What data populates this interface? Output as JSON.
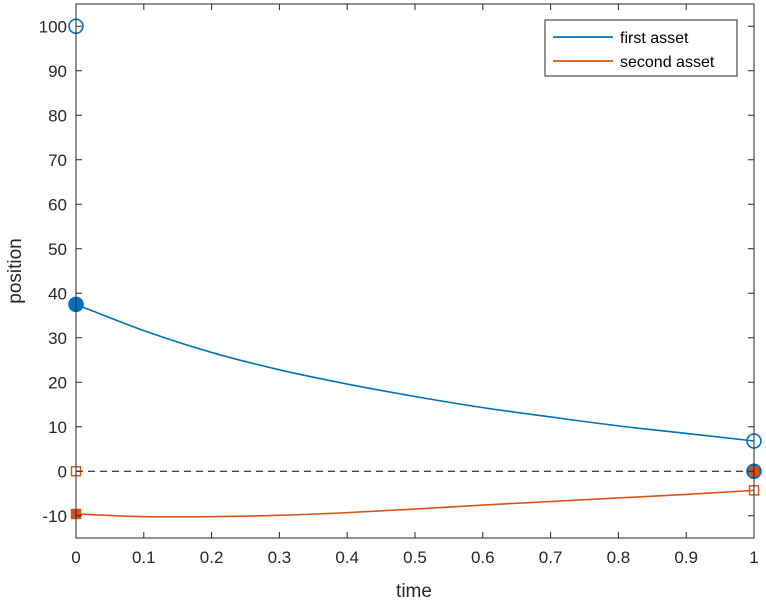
{
  "chart_data": {
    "type": "line",
    "xlabel": "time",
    "ylabel": "position",
    "xlim": [
      0,
      1
    ],
    "ylim": [
      -15,
      105
    ],
    "xticks": [
      "0",
      "0.1",
      "0.2",
      "0.3",
      "0.4",
      "0.5",
      "0.6",
      "0.7",
      "0.8",
      "0.9",
      "1"
    ],
    "yticks": [
      "-10",
      "0",
      "10",
      "20",
      "30",
      "40",
      "50",
      "60",
      "70",
      "80",
      "90",
      "100"
    ],
    "grid": false,
    "box": true,
    "legend_location": "top-right",
    "reference_line": {
      "y": 0,
      "style": "dashed",
      "color": "#000000"
    },
    "series": [
      {
        "name": "first asset",
        "color": "#0072BD",
        "x": [
          0,
          0.1,
          0.2,
          0.3,
          0.4,
          0.5,
          0.6,
          0.7,
          0.8,
          0.9,
          1.0
        ],
        "y": [
          37.5,
          31.6,
          26.7,
          22.8,
          19.6,
          16.8,
          14.3,
          12.2,
          10.2,
          8.5,
          6.8
        ],
        "markers": [
          {
            "x": 0,
            "y": 100,
            "shape": "circle",
            "filled": false
          },
          {
            "x": 0,
            "y": 37.5,
            "shape": "circle",
            "filled": true
          },
          {
            "x": 1,
            "y": 6.8,
            "shape": "circle",
            "filled": false
          },
          {
            "x": 1,
            "y": 0,
            "shape": "circle",
            "filled": true
          }
        ]
      },
      {
        "name": "second asset",
        "color": "#D95319",
        "x": [
          0,
          0.1,
          0.2,
          0.3,
          0.4,
          0.5,
          0.6,
          0.7,
          0.8,
          0.9,
          1.0
        ],
        "y": [
          -9.6,
          -10.2,
          -10.2,
          -9.9,
          -9.3,
          -8.5,
          -7.6,
          -6.8,
          -6.0,
          -5.2,
          -4.3
        ],
        "markers": [
          {
            "x": 0,
            "y": 0,
            "shape": "square",
            "filled": false
          },
          {
            "x": 0,
            "y": -9.6,
            "shape": "square",
            "filled": true
          },
          {
            "x": 1,
            "y": -4.3,
            "shape": "square",
            "filled": false
          },
          {
            "x": 1,
            "y": 0,
            "shape": "square",
            "filled": true
          }
        ]
      }
    ]
  }
}
